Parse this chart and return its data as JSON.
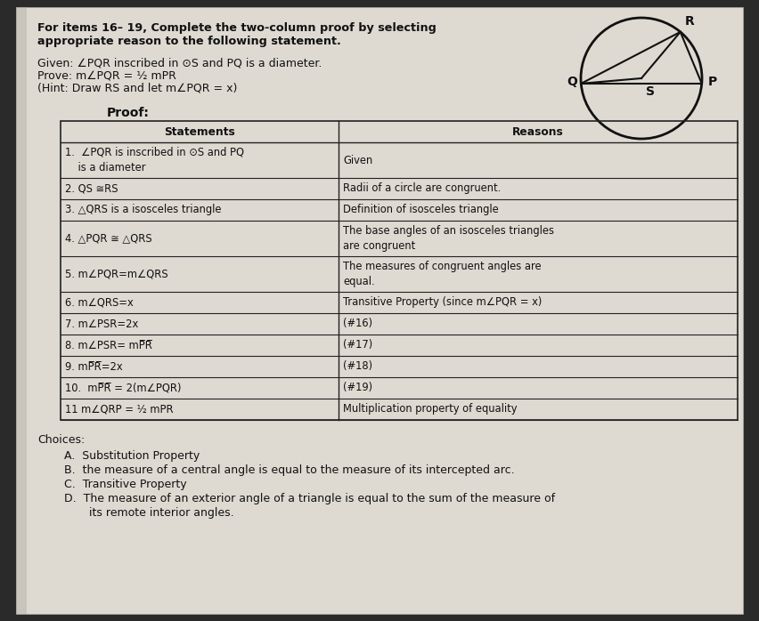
{
  "bg_color": "#2a2a2a",
  "paper_color": "#dedad2",
  "title_line1": "For items 16– 19, Complete the two-column proof by selecting",
  "title_line2": "appropriate reason to the following statement.",
  "given_line1": "Given: ∠PQR inscribed in ⊙S and PQ is a diameter.",
  "given_line2": "Prove: m∠PQR = ½ mPR",
  "given_line3": "(Hint: Draw RS and let m∠PQR = x)",
  "proof_label": "Proof:",
  "col1_header": "Statements",
  "col2_header": "Reasons",
  "rows": [
    [
      "1.  ∠PQR is inscribed in ⊙S and PQ\n    is a diameter",
      "Given"
    ],
    [
      "2. QS ≅RS",
      "Radii of a circle are congruent."
    ],
    [
      "3. △QRS is a isosceles triangle",
      "Definition of isosceles triangle"
    ],
    [
      "4. △PQR ≅ △QRS",
      "The base angles of an isosceles triangles\nare congruent"
    ],
    [
      "5. m∠PQR=m∠QRS",
      "The measures of congruent angles are\nequal."
    ],
    [
      "6. m∠QRS=x",
      "Transitive Property (since m∠PQR = x)"
    ],
    [
      "7. m∠PSR=2x",
      "(#16)"
    ],
    [
      "8. m∠PSR= mP̅R̅",
      "(#17)"
    ],
    [
      "9. mP̅R̅=2x",
      "(#18)"
    ],
    [
      "10.  mP̅R̅ = 2(m∠PQR)",
      "(#19)"
    ],
    [
      "11 m∠QRP = ½ mPR",
      "Multiplication property of equality"
    ]
  ],
  "choices_label": "Choices:",
  "choices": [
    "A.  Substitution Property",
    "B.  the measure of a central angle is equal to the measure of its intercepted arc.",
    "C.  Transitive Property",
    "D.  The measure of an exterior angle of a triangle is equal to the sum of the measure of\n       its remote interior angles."
  ],
  "font_size_title": 9.2,
  "font_size_body": 9.0,
  "font_size_table": 8.3,
  "font_size_choices": 9.0
}
